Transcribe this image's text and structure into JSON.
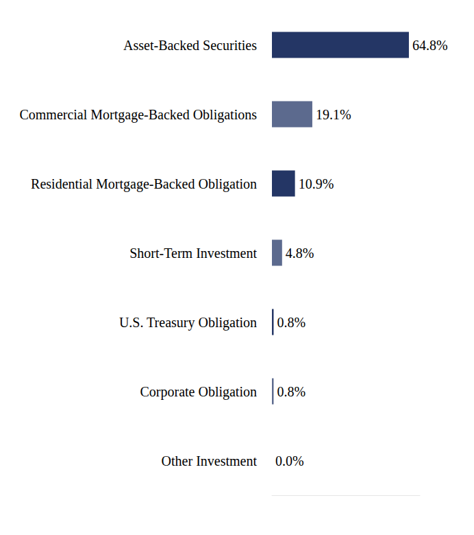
{
  "chart_data": {
    "type": "bar",
    "orientation": "horizontal",
    "categories": [
      "Asset-Backed Securities",
      "Commercial Mortgage-Backed Obligations",
      "Residential Mortgage-Backed Obligation",
      "Short-Term Investment",
      "U.S. Treasury Obligation",
      "Corporate Obligation",
      "Other Investment"
    ],
    "values": [
      64.8,
      19.1,
      10.9,
      4.8,
      0.8,
      0.8,
      0.0
    ],
    "value_labels": [
      "64.8%",
      "19.1%",
      "10.9%",
      "4.8%",
      "0.8%",
      "0.8%",
      "0.0%"
    ],
    "colors": [
      "#243665",
      "#5c6a8e",
      "#243665",
      "#5c6a8e",
      "#243665",
      "#5c6a8e",
      "#243665"
    ],
    "xlim": [
      0,
      70
    ],
    "data_labels": true,
    "tick_labels": "y",
    "grid": false
  }
}
